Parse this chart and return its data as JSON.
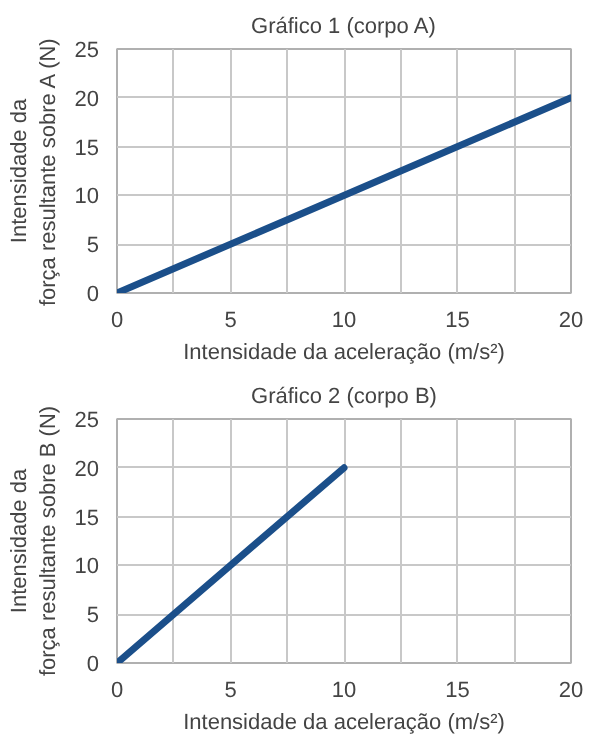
{
  "chart_data": [
    {
      "type": "line",
      "title": "Gráfico 1 (corpo A)",
      "xlabel": "Intensidade da aceleração (m/s²)",
      "ylabel": "Intensidade da\nforça resultante sobre A (N)",
      "x": [
        0,
        20
      ],
      "series": [
        {
          "color": "#1b4f8a",
          "values": [
            0,
            20
          ]
        }
      ],
      "xlim": [
        0,
        20
      ],
      "ylim": [
        0,
        25
      ],
      "xticks": [
        0,
        {
          "value": 2.5,
          "label": null
        },
        5,
        {
          "value": 7.5,
          "label": null
        },
        10,
        {
          "value": 12.5,
          "label": null
        },
        15,
        {
          "value": 17.5,
          "label": null
        },
        20
      ],
      "yticks": [
        0,
        5,
        10,
        15,
        20,
        25
      ],
      "grid": true,
      "marker": "none",
      "line_style": "solid"
    },
    {
      "type": "line",
      "title": "Gráfico 2 (corpo B)",
      "xlabel": "Intensidade da aceleração (m/s²)",
      "ylabel": "Intensidade da\nforça resultante sobre B (N)",
      "x": [
        0,
        10
      ],
      "series": [
        {
          "color": "#1b4f8a",
          "values": [
            0,
            20
          ]
        }
      ],
      "xlim": [
        0,
        20
      ],
      "ylim": [
        0,
        25
      ],
      "xticks": [
        0,
        {
          "value": 2.5,
          "label": null
        },
        5,
        {
          "value": 7.5,
          "label": null
        },
        10,
        {
          "value": 12.5,
          "label": null
        },
        15,
        {
          "value": 17.5,
          "label": null
        },
        20
      ],
      "yticks": [
        0,
        5,
        10,
        15,
        20,
        25
      ],
      "grid": true,
      "marker": "none",
      "line_style": "solid"
    }
  ]
}
